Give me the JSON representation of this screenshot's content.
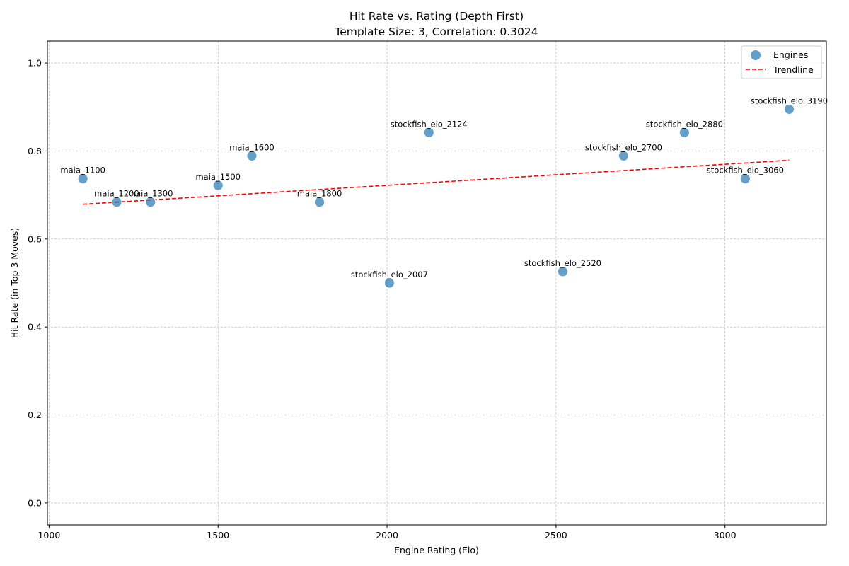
{
  "chart_data": {
    "type": "scatter",
    "title": "Hit Rate vs. Rating (Depth First)",
    "subtitle": "Template Size: 3, Correlation: 0.3024",
    "xlabel": "Engine Rating (Elo)",
    "ylabel": "Hit Rate (in Top 3 Moves)",
    "xlim": [
      995,
      3300
    ],
    "ylim": [
      -0.05,
      1.05
    ],
    "xticks": [
      1000,
      1500,
      2000,
      2500,
      3000
    ],
    "yticks": [
      0.0,
      0.2,
      0.4,
      0.6,
      0.8,
      1.0
    ],
    "xtick_labels": [
      "1000",
      "1500",
      "2000",
      "2500",
      "3000"
    ],
    "ytick_labels": [
      "0.0",
      "0.2",
      "0.4",
      "0.6",
      "0.8",
      "1.0"
    ],
    "grid": true,
    "legend_position": "top-right",
    "legend": [
      "Engines",
      "Trendline"
    ],
    "colors": {
      "points": "#1f77b4",
      "trendline": "#ff0000"
    },
    "series": [
      {
        "name": "Engines",
        "points": [
          {
            "label": "maia_1100",
            "x": 1100,
            "y": 0.737
          },
          {
            "label": "maia_1200",
            "x": 1200,
            "y": 0.684
          },
          {
            "label": "maia_1300",
            "x": 1300,
            "y": 0.684
          },
          {
            "label": "maia_1500",
            "x": 1500,
            "y": 0.722
          },
          {
            "label": "maia_1600",
            "x": 1600,
            "y": 0.789
          },
          {
            "label": "maia_1800",
            "x": 1800,
            "y": 0.684
          },
          {
            "label": "stockfish_elo_2007",
            "x": 2007,
            "y": 0.5
          },
          {
            "label": "stockfish_elo_2124",
            "x": 2124,
            "y": 0.842
          },
          {
            "label": "stockfish_elo_2520",
            "x": 2520,
            "y": 0.526
          },
          {
            "label": "stockfish_elo_2700",
            "x": 2700,
            "y": 0.789
          },
          {
            "label": "stockfish_elo_2880",
            "x": 2880,
            "y": 0.842
          },
          {
            "label": "stockfish_elo_3060",
            "x": 3060,
            "y": 0.737
          },
          {
            "label": "stockfish_elo_3190",
            "x": 3190,
            "y": 0.895
          }
        ]
      },
      {
        "name": "Trendline",
        "line_style": "dashed",
        "x": [
          1100,
          3190
        ],
        "y": [
          0.679,
          0.779
        ]
      }
    ]
  }
}
